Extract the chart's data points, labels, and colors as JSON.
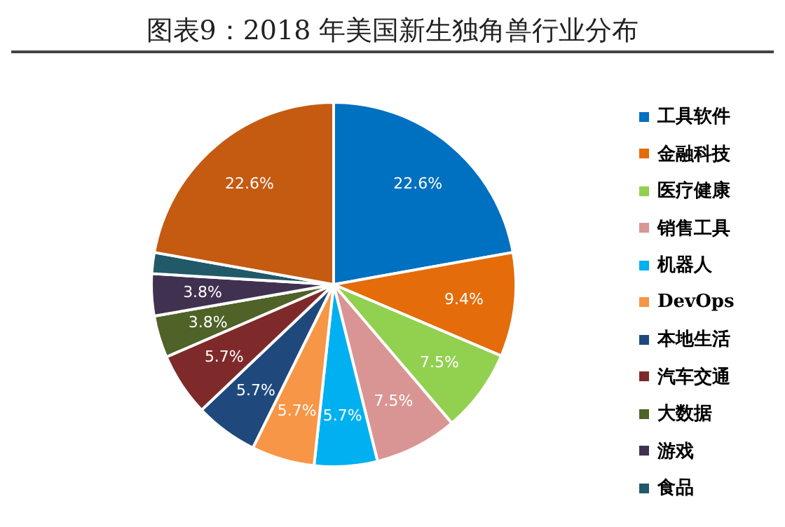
{
  "chart_data": {
    "type": "pie",
    "title": "图表9：2018 年美国新生独角兽行业分布",
    "categories": [
      "工具软件",
      "金融科技",
      "医疗健康",
      "销售工具",
      "机器人",
      "DevOps",
      "本地生活",
      "汽车交通",
      "大数据",
      "游戏",
      "食品",
      null
    ],
    "values": [
      22.6,
      9.4,
      7.5,
      7.5,
      5.7,
      5.7,
      5.7,
      5.7,
      3.8,
      3.8,
      1.9,
      22.6
    ],
    "value_labels": [
      "22.6%",
      "9.4%",
      "7.5%",
      "7.5%",
      "5.7%",
      "5.7%",
      "5.7%",
      "5.7%",
      "3.8%",
      "3.8%",
      null,
      "22.6%"
    ],
    "colors": [
      "#0070c0",
      "#e46c0a",
      "#92d050",
      "#d99594",
      "#00b0f0",
      "#f79646",
      "#1f497d",
      "#7f2a2a",
      "#4f6228",
      "#403151",
      "#215968",
      "#c55a11"
    ],
    "legend": "right"
  }
}
